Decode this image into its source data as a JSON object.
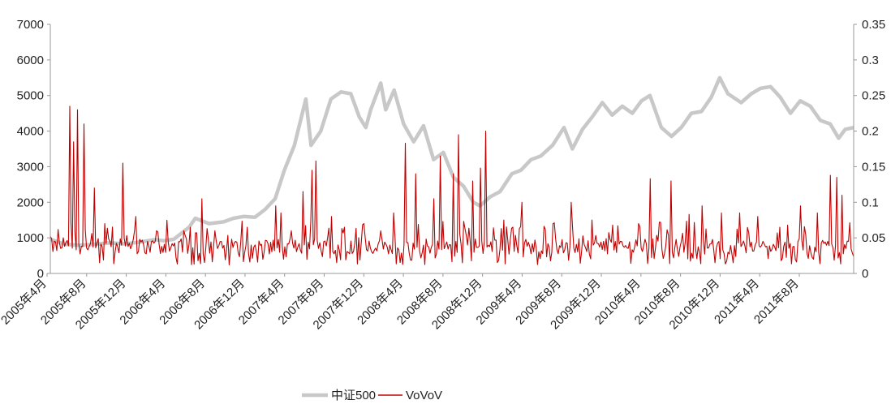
{
  "chart_data": {
    "type": "line",
    "dual_axis": true,
    "x": [
      "2005年4月",
      "2005年8月",
      "2005年12月",
      "2006年4月",
      "2006年8月",
      "2006年12月",
      "2007年4月",
      "2007年8月",
      "2007年12月",
      "2008年4月",
      "2008年8月",
      "2008年12月",
      "2009年4月",
      "2009年8月",
      "2009年12月",
      "2010年4月",
      "2010年8月",
      "2010年12月",
      "2011年4月",
      "2011年8月"
    ],
    "x_range": [
      "2005-04-01",
      "2011-12-31"
    ],
    "y_left": {
      "ticks": [
        "0",
        "1000",
        "2000",
        "3000",
        "4000",
        "5000",
        "6000",
        "7000"
      ],
      "ylim": [
        0,
        7000
      ]
    },
    "y_right": {
      "ticks": [
        "0",
        "0.05",
        "0.1",
        "0.15",
        "0.2",
        "0.25",
        "0.3",
        "0.35"
      ],
      "ylim": [
        0,
        0.35
      ]
    },
    "series": [
      {
        "name": "中证500",
        "axis": "left",
        "color": "#c8c8c8",
        "points": [
          [
            "2005-04-01",
            960
          ],
          [
            "2005-05-15",
            820
          ],
          [
            "2005-07-01",
            790
          ],
          [
            "2005-08-15",
            820
          ],
          [
            "2005-10-01",
            860
          ],
          [
            "2005-11-15",
            830
          ],
          [
            "2006-01-01",
            880
          ],
          [
            "2006-02-15",
            950
          ],
          [
            "2006-03-15",
            920
          ],
          [
            "2006-04-15",
            960
          ],
          [
            "2006-06-01",
            1300
          ],
          [
            "2006-06-20",
            1550
          ],
          [
            "2006-08-01",
            1400
          ],
          [
            "2006-09-15",
            1450
          ],
          [
            "2006-10-15",
            1550
          ],
          [
            "2006-11-15",
            1600
          ],
          [
            "2006-12-20",
            1580
          ],
          [
            "2007-01-20",
            1800
          ],
          [
            "2007-02-20",
            2100
          ],
          [
            "2007-03-20",
            2900
          ],
          [
            "2007-04-20",
            3600
          ],
          [
            "2007-05-25",
            4900
          ],
          [
            "2007-06-10",
            3600
          ],
          [
            "2007-07-10",
            4000
          ],
          [
            "2007-08-10",
            4900
          ],
          [
            "2007-09-10",
            5100
          ],
          [
            "2007-10-10",
            5050
          ],
          [
            "2007-11-05",
            4400
          ],
          [
            "2007-11-25",
            4100
          ],
          [
            "2007-12-10",
            4600
          ],
          [
            "2008-01-10",
            5350
          ],
          [
            "2008-01-25",
            4600
          ],
          [
            "2008-02-20",
            5150
          ],
          [
            "2008-03-20",
            4200
          ],
          [
            "2008-04-20",
            3700
          ],
          [
            "2008-05-20",
            4150
          ],
          [
            "2008-06-20",
            3200
          ],
          [
            "2008-07-20",
            3400
          ],
          [
            "2008-08-20",
            2700
          ],
          [
            "2008-09-20",
            2450
          ],
          [
            "2008-10-20",
            2000
          ],
          [
            "2008-11-10",
            1900
          ],
          [
            "2008-12-10",
            2150
          ],
          [
            "2009-01-10",
            2300
          ],
          [
            "2009-02-15",
            2800
          ],
          [
            "2009-03-15",
            2900
          ],
          [
            "2009-04-15",
            3200
          ],
          [
            "2009-05-15",
            3300
          ],
          [
            "2009-06-20",
            3600
          ],
          [
            "2009-07-25",
            4100
          ],
          [
            "2009-08-20",
            3500
          ],
          [
            "2009-09-20",
            4050
          ],
          [
            "2009-10-20",
            4400
          ],
          [
            "2009-11-20",
            4800
          ],
          [
            "2009-12-20",
            4450
          ],
          [
            "2010-01-20",
            4700
          ],
          [
            "2010-02-20",
            4500
          ],
          [
            "2010-03-20",
            4850
          ],
          [
            "2010-04-15",
            5000
          ],
          [
            "2010-05-20",
            4100
          ],
          [
            "2010-06-20",
            3850
          ],
          [
            "2010-07-20",
            4100
          ],
          [
            "2010-08-20",
            4500
          ],
          [
            "2010-09-20",
            4550
          ],
          [
            "2010-10-20",
            4950
          ],
          [
            "2010-11-15",
            5500
          ],
          [
            "2010-12-10",
            5050
          ],
          [
            "2011-01-20",
            4800
          ],
          [
            "2011-02-20",
            5050
          ],
          [
            "2011-03-20",
            5200
          ],
          [
            "2011-04-20",
            5250
          ],
          [
            "2011-05-20",
            4950
          ],
          [
            "2011-06-20",
            4500
          ],
          [
            "2011-07-20",
            4850
          ],
          [
            "2011-08-20",
            4700
          ],
          [
            "2011-09-20",
            4300
          ],
          [
            "2011-10-20",
            4200
          ],
          [
            "2011-11-15",
            3800
          ],
          [
            "2011-12-05",
            4050
          ],
          [
            "2011-12-31",
            4100
          ]
        ]
      },
      {
        "name": "VoVoV",
        "axis": "right",
        "color": "#c00000",
        "spikes": [
          [
            "2005-04-01",
            0.052
          ],
          [
            "2005-05-10",
            0.05
          ],
          [
            "2005-06-01",
            0.235
          ],
          [
            "2005-06-10",
            0.185
          ],
          [
            "2005-06-25",
            0.23
          ],
          [
            "2005-07-15",
            0.21
          ],
          [
            "2005-08-15",
            0.12
          ],
          [
            "2005-09-15",
            0.07
          ],
          [
            "2005-11-10",
            0.155
          ],
          [
            "2005-12-20",
            0.08
          ],
          [
            "2006-02-20",
            0.06
          ],
          [
            "2006-05-15",
            0.06
          ],
          [
            "2006-06-05",
            0.065
          ],
          [
            "2006-07-10",
            0.105
          ],
          [
            "2006-08-20",
            0.06
          ],
          [
            "2006-10-20",
            0.045
          ],
          [
            "2006-12-20",
            0.04
          ],
          [
            "2007-02-20",
            0.095
          ],
          [
            "2007-03-10",
            0.085
          ],
          [
            "2007-04-10",
            0.06
          ],
          [
            "2007-05-15",
            0.115
          ],
          [
            "2007-06-15",
            0.145
          ],
          [
            "2007-06-25",
            0.158
          ],
          [
            "2007-08-10",
            0.08
          ],
          [
            "2007-09-20",
            0.065
          ],
          [
            "2007-11-20",
            0.07
          ],
          [
            "2008-01-10",
            0.06
          ],
          [
            "2008-02-20",
            0.085
          ],
          [
            "2008-03-25",
            0.183
          ],
          [
            "2008-04-25",
            0.14
          ],
          [
            "2008-06-20",
            0.105
          ],
          [
            "2008-07-10",
            0.165
          ],
          [
            "2008-08-20",
            0.14
          ],
          [
            "2008-09-05",
            0.195
          ],
          [
            "2008-10-20",
            0.13
          ],
          [
            "2008-11-10",
            0.148
          ],
          [
            "2008-11-25",
            0.2
          ],
          [
            "2009-01-20",
            0.075
          ],
          [
            "2009-02-20",
            0.065
          ],
          [
            "2009-03-20",
            0.1
          ],
          [
            "2009-06-20",
            0.07
          ],
          [
            "2009-08-15",
            0.1
          ],
          [
            "2009-10-20",
            0.075
          ],
          [
            "2009-12-20",
            0.068
          ],
          [
            "2010-03-10",
            0.07
          ],
          [
            "2010-04-15",
            0.133
          ],
          [
            "2010-05-15",
            0.072
          ],
          [
            "2010-06-20",
            0.13
          ],
          [
            "2010-08-15",
            0.083
          ],
          [
            "2010-09-20",
            0.095
          ],
          [
            "2010-11-20",
            0.085
          ],
          [
            "2011-01-15",
            0.085
          ],
          [
            "2011-03-10",
            0.08
          ],
          [
            "2011-05-20",
            0.065
          ],
          [
            "2011-07-20",
            0.095
          ],
          [
            "2011-09-10",
            0.085
          ],
          [
            "2011-10-20",
            0.138
          ],
          [
            "2011-11-10",
            0.135
          ],
          [
            "2011-11-25",
            0.11
          ],
          [
            "2011-12-15",
            0.045
          ]
        ]
      }
    ],
    "legend": {
      "position": "bottom-center",
      "entries": [
        "中证500",
        "VoVoV"
      ]
    },
    "grid": false
  }
}
